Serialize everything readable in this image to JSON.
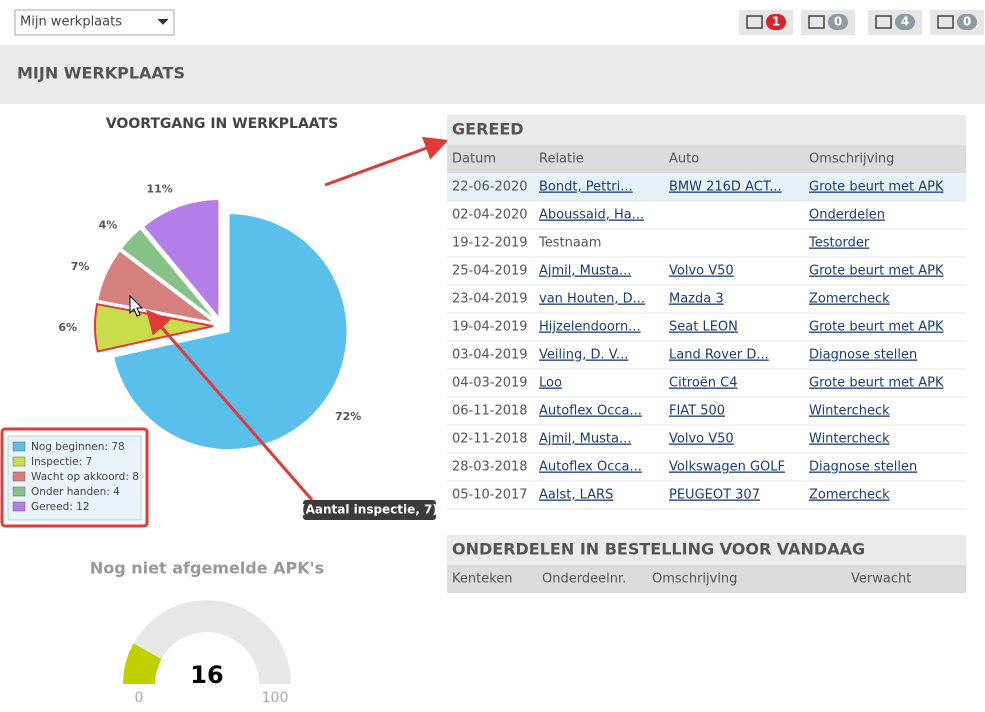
{
  "toolbar": {
    "select": "Mijn werkplaats",
    "badges": [
      1,
      0,
      4,
      0
    ]
  },
  "page_title": "MIJN WERKPLAATS",
  "progress_chart": {
    "type": "pie",
    "title": "VOORTGANG IN WERKPLAATS",
    "categories": [
      "Nog beginnen",
      "Inspectie",
      "Wacht op akkoord",
      "Onder handen",
      "Gereed"
    ],
    "values": [
      78,
      7,
      8,
      4,
      12
    ],
    "value_labels": [
      "72%",
      "6%",
      "7%",
      "4%",
      "11%"
    ],
    "colors": [
      "#5bbfec",
      "#c9dc4b",
      "#d4807c",
      "#86c186",
      "#b37ee8"
    ],
    "tooltip": "(Aantal inspectie, 7)"
  },
  "apk_gauge": {
    "type": "gauge",
    "title": "Nog niet afgemelde APK's",
    "value": 16,
    "min": 0,
    "max": 100,
    "color": "#c1cf00"
  },
  "ready_table": {
    "title": "GEREED",
    "columns": [
      "Datum",
      "Relatie",
      "Auto",
      "Omschrijving"
    ],
    "rows": [
      [
        "22-06-2020",
        "Bondt, Pettri...",
        "BMW 216D ACT...",
        "Grote beurt met APK"
      ],
      [
        "02-04-2020",
        "Aboussaid, Ha...",
        null,
        "Onderdelen"
      ],
      [
        "19-12-2019",
        "Testnaam",
        null,
        "Testorder"
      ],
      [
        "25-04-2019",
        "Ajmil, Musta...",
        "Volvo V50",
        "Grote beurt met APK"
      ],
      [
        "23-04-2019",
        "van Houten, D...",
        "Mazda 3",
        "Zomercheck"
      ],
      [
        "19-04-2019",
        "Hijzelendoorn...",
        "Seat LEON",
        "Grote beurt met APK"
      ],
      [
        "03-04-2019",
        "Veiling, D. V...",
        "Land Rover D...",
        "Diagnose stellen"
      ],
      [
        "04-03-2019",
        "Loo",
        "Citroën C4",
        "Grote beurt met APK"
      ],
      [
        "06-11-2018",
        "Autoflex Occa...",
        "FIAT 500",
        "Wintercheck"
      ],
      [
        "02-11-2018",
        "Ajmil, Musta...",
        "Volvo V50",
        "Wintercheck"
      ],
      [
        "28-03-2018",
        "Autoflex Occa...",
        "Volkswagen GOLF",
        "Diagnose stellen"
      ],
      [
        "05-10-2017",
        "Aalst, LARS",
        "PEUGEOT 307",
        "Zomercheck"
      ]
    ]
  },
  "parts_table": {
    "title": "ONDERDELEN IN BESTELLING VOOR VANDAAG",
    "columns": [
      "Kenteken",
      "Onderdeelnr.",
      "Omschrijving",
      "Verwacht"
    ]
  }
}
